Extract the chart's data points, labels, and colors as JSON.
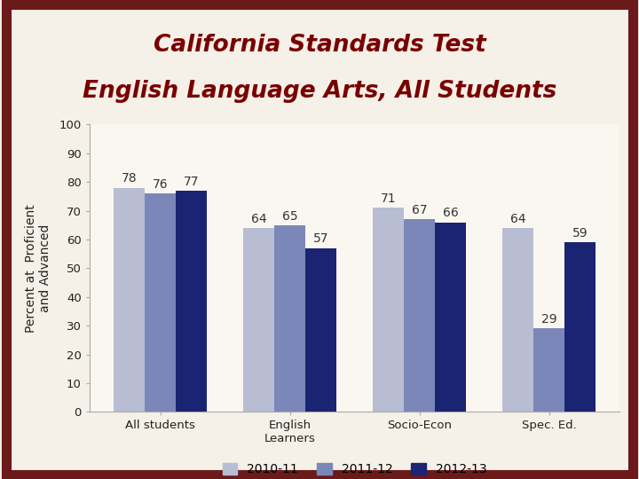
{
  "title_line1": "California Standards Test",
  "title_line2": "English Language Arts, All Students",
  "categories": [
    "All students",
    "English\nLearners",
    "Socio-Econ",
    "Spec. Ed."
  ],
  "series": {
    "2010-11": [
      78,
      64,
      71,
      64
    ],
    "2011-12": [
      76,
      65,
      67,
      29
    ],
    "2012-13": [
      77,
      57,
      66,
      59
    ]
  },
  "colors": {
    "2010-11": "#b8bdd4",
    "2011-12": "#7b87b8",
    "2012-13": "#1a2472"
  },
  "ylabel": "Percent at  Proficient\nand Advanced",
  "ylim": [
    0,
    100
  ],
  "yticks": [
    0,
    10,
    20,
    30,
    40,
    50,
    60,
    70,
    80,
    90,
    100
  ],
  "legend_labels": [
    "2010-11",
    "2011-12",
    "2012-13"
  ],
  "title_color": "#7a0000",
  "outer_bg_color": "#f5f0e8",
  "border_color": "#6b1a1a",
  "plot_bg_color": "#faf7f0",
  "title_fontsize": 19,
  "bar_label_fontsize": 10,
  "axis_label_fontsize": 10,
  "tick_fontsize": 9.5,
  "legend_fontsize": 10
}
